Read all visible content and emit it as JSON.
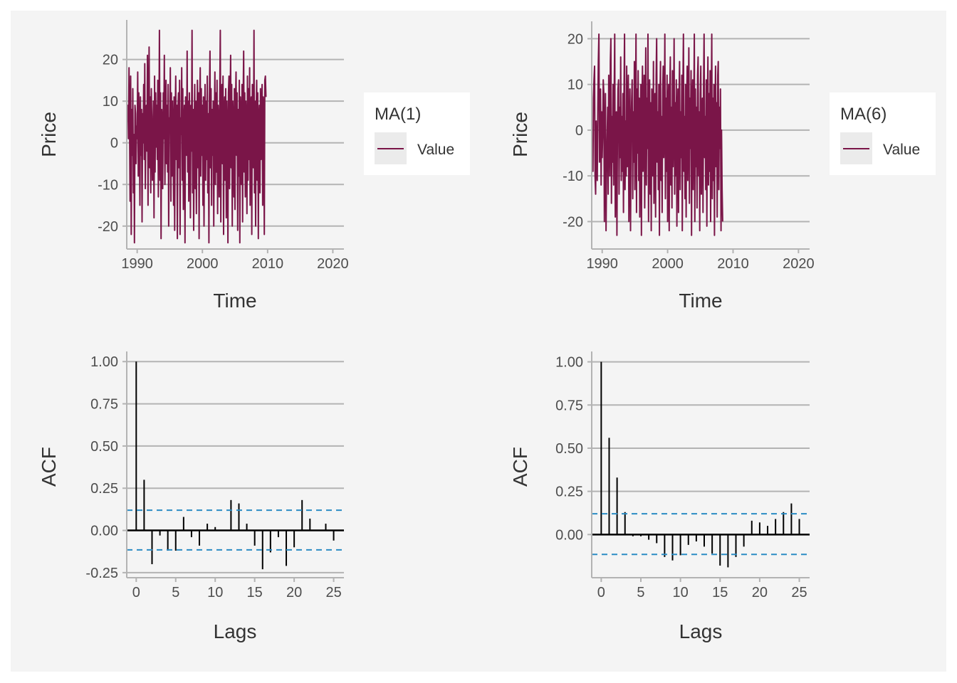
{
  "colors": {
    "series": "#7a1548",
    "grid": "#b3b3b3",
    "axis": "#b3b3b3",
    "acf_bar": "#000000",
    "ci_line": "#2b8cc4",
    "panel_bg": "#f4f4f4",
    "legend_bg": "#ffffff",
    "legend_key_bg": "#ebebeb"
  },
  "chart_data": [
    {
      "id": "ma1-series",
      "type": "line",
      "xlabel": "Time",
      "ylabel": "Price",
      "xlim": [
        1988.4,
        2021.7
      ],
      "ylim": [
        -25.5,
        29.5
      ],
      "xticks": [
        1990,
        2000,
        2010,
        2020
      ],
      "yticks": [
        -20,
        -10,
        0,
        10,
        20
      ],
      "grid": "horizontal",
      "legend": {
        "title": "MA(1)",
        "label": "Value",
        "position": "right"
      },
      "series": [
        {
          "name": "Value",
          "x_start": 1988.5,
          "x_step": 0.0833,
          "values": [
            5,
            9,
            1,
            18,
            3,
            -14,
            16,
            -22,
            8,
            -3,
            13,
            -12,
            2,
            -24,
            9,
            7,
            -5,
            4,
            1,
            17,
            -8,
            12,
            2,
            -15,
            11,
            -3,
            8,
            -19,
            7,
            0,
            14,
            -4,
            19,
            -11,
            6,
            9,
            -2,
            21,
            -15,
            8,
            23,
            -6,
            11,
            -12,
            13,
            5,
            -9,
            3,
            10,
            -18,
            16,
            -7,
            12,
            -1,
            9,
            -4,
            15,
            -13,
            4,
            27,
            -9,
            12,
            -23,
            8,
            5,
            -11,
            12,
            1,
            21,
            -10,
            4,
            15,
            -5,
            9,
            -7,
            14,
            -20,
            6,
            3,
            18,
            -14,
            12,
            -8,
            10,
            3,
            -15,
            11,
            -21,
            7,
            16,
            -4,
            9,
            -23,
            8,
            12,
            -6,
            15,
            -22,
            6,
            2,
            18,
            -9,
            13,
            -16,
            4,
            9,
            -24,
            11,
            5,
            -3,
            22,
            -7,
            10,
            -14,
            12,
            3,
            -18,
            9,
            -2,
            27,
            -12,
            8,
            -21,
            5,
            14,
            -11,
            10,
            -17,
            4,
            15,
            -6,
            12,
            -23,
            9,
            18,
            -8,
            13,
            -3,
            9,
            -15,
            11,
            -20,
            6,
            14,
            -9,
            10,
            -4,
            16,
            -12,
            7,
            -24,
            11,
            22,
            -6,
            13,
            -15,
            8,
            -3,
            10,
            -20,
            5,
            17,
            -10,
            12,
            -7,
            15,
            -17,
            9,
            4,
            -13,
            11,
            27,
            -19,
            8,
            14,
            -5,
            16,
            -22,
            6,
            11,
            -9,
            13,
            -18,
            10,
            2,
            -24,
            12,
            16,
            -11,
            8,
            21,
            -6,
            14,
            -20,
            10,
            4,
            -13,
            13,
            -16,
            9,
            17,
            -3,
            12,
            -21,
            8,
            -8,
            15,
            -24,
            11,
            6,
            -10,
            14,
            -19,
            9,
            22,
            -7,
            12,
            -13,
            10,
            5,
            -17,
            16,
            -9,
            13,
            -4,
            18,
            -15,
            9,
            11,
            -22,
            14,
            8,
            -6,
            27,
            -12,
            10,
            -20,
            7,
            15,
            -9,
            12,
            -23,
            6,
            9,
            -12,
            13,
            -4,
            8,
            14,
            -15,
            11,
            7,
            -22,
            15,
            16,
            11
          ]
        }
      ]
    },
    {
      "id": "ma6-series",
      "type": "line",
      "xlabel": "Time",
      "ylabel": "Price",
      "xlim": [
        1988.4,
        2021.7
      ],
      "ylim": [
        -26,
        23.8
      ],
      "xticks": [
        1990,
        2000,
        2010,
        2020
      ],
      "yticks": [
        -20,
        -10,
        0,
        10,
        20
      ],
      "grid": "horizontal",
      "legend": {
        "title": "MA(6)",
        "label": "Value",
        "position": "right"
      },
      "series": [
        {
          "name": "Value",
          "x_start": 1988.5,
          "x_step": 0.0833,
          "values": [
            -5,
            -9,
            7,
            11,
            14,
            -10,
            -14,
            2,
            -8,
            -11,
            5,
            15,
            21,
            -7,
            -3,
            9,
            -12,
            4,
            -6,
            0,
            11,
            8,
            -20,
            -4,
            8,
            -22,
            -10,
            -2,
            5,
            -14,
            12,
            4,
            -10,
            15,
            20,
            -16,
            3,
            -7,
            10,
            -12,
            6,
            21,
            -19,
            -8,
            4,
            -23,
            -2,
            9,
            11,
            -14,
            5,
            -6,
            16,
            -11,
            3,
            -9,
            8,
            -18,
            7,
            21,
            -13,
            2,
            -10,
            14,
            -8,
            5,
            12,
            -20,
            -3,
            9,
            -22,
            0,
            6,
            11,
            -15,
            4,
            -7,
            15,
            -13,
            2,
            21,
            -18,
            9,
            -5,
            13,
            -11,
            7,
            -19,
            3,
            10,
            -23,
            6,
            14,
            -9,
            2,
            12,
            -17,
            4,
            18,
            -12,
            7,
            -4,
            21,
            -20,
            3,
            11,
            -14,
            6,
            -22,
            9,
            5,
            -10,
            15,
            -16,
            2,
            8,
            -19,
            12,
            20,
            -7,
            4,
            -13,
            10,
            -23,
            6,
            15,
            -11,
            3,
            -18,
            9,
            14,
            -6,
            2,
            21,
            -15,
            7,
            -9,
            12,
            -20,
            4,
            10,
            -22,
            8,
            16,
            -12,
            5,
            -17,
            13,
            -8,
            3,
            20,
            -14,
            6,
            -10,
            11,
            -21,
            2,
            9,
            -18,
            7,
            15,
            -13,
            4,
            -6,
            12,
            -22,
            8,
            21,
            -9,
            3,
            -15,
            10,
            -19,
            5,
            14,
            -11,
            2,
            18,
            -16,
            7,
            -4,
            13,
            -23,
            6,
            11,
            -13,
            3,
            21,
            -20,
            9,
            -8,
            5,
            -17,
            12,
            16,
            -10,
            4,
            -22,
            8,
            14,
            -14,
            2,
            7,
            -18,
            10,
            21,
            -6,
            3,
            -13,
            11,
            -21,
            5,
            16,
            -12,
            8,
            -9,
            13,
            -20,
            4,
            21,
            -15,
            7,
            -11,
            10,
            -23,
            3,
            14,
            -8,
            6,
            -19,
            12,
            15,
            -13,
            5,
            -4,
            9,
            -22,
            0,
            -13,
            -20
          ]
        }
      ]
    },
    {
      "id": "ma1-acf",
      "type": "bar",
      "xlabel": "Lags",
      "ylabel": "ACF",
      "xlim": [
        -1.2,
        26.3
      ],
      "ylim": [
        -0.28,
        1.06
      ],
      "xticks": [
        0,
        5,
        10,
        15,
        20,
        25
      ],
      "yticks": [
        -0.25,
        0.0,
        0.25,
        0.5,
        0.75,
        1.0
      ],
      "ytick_labels": [
        "-0.25",
        "0.00",
        "0.25",
        "0.50",
        "0.75",
        "1.00"
      ],
      "grid": "horizontal",
      "ci": [
        0.12,
        -0.115
      ],
      "series": [
        {
          "lags": [
            0,
            1,
            2,
            3,
            4,
            5,
            6,
            7,
            8,
            9,
            10,
            11,
            12,
            13,
            14,
            15,
            16,
            17,
            18,
            19,
            20,
            21,
            22,
            23,
            24,
            25
          ],
          "values": [
            1.0,
            0.3,
            -0.2,
            -0.03,
            -0.12,
            -0.12,
            0.08,
            -0.04,
            -0.09,
            0.04,
            0.02,
            0.0,
            0.18,
            0.16,
            0.04,
            -0.09,
            -0.23,
            -0.13,
            -0.04,
            -0.21,
            -0.1,
            0.18,
            0.07,
            0.0,
            0.04,
            -0.06
          ]
        }
      ]
    },
    {
      "id": "ma6-acf",
      "type": "bar",
      "xlabel": "Lags",
      "ylabel": "ACF",
      "xlim": [
        -1.2,
        26.3
      ],
      "ylim": [
        -0.25,
        1.06
      ],
      "xticks": [
        0,
        5,
        10,
        15,
        20,
        25
      ],
      "yticks": [
        0.0,
        0.25,
        0.5,
        0.75,
        1.0
      ],
      "ytick_labels": [
        "0.00",
        "0.25",
        "0.50",
        "0.75",
        "1.00"
      ],
      "grid": "horizontal",
      "ci": [
        0.12,
        -0.115
      ],
      "series": [
        {
          "lags": [
            0,
            1,
            2,
            3,
            4,
            5,
            6,
            7,
            8,
            9,
            10,
            11,
            12,
            13,
            14,
            15,
            16,
            17,
            18,
            19,
            20,
            21,
            22,
            23,
            24,
            25
          ],
          "values": [
            1.0,
            0.56,
            0.33,
            0.13,
            -0.01,
            -0.01,
            -0.03,
            -0.05,
            -0.13,
            -0.15,
            -0.12,
            -0.06,
            -0.04,
            -0.07,
            -0.11,
            -0.18,
            -0.19,
            -0.13,
            -0.07,
            0.08,
            0.07,
            0.05,
            0.09,
            0.13,
            0.18,
            0.09
          ]
        }
      ]
    }
  ]
}
